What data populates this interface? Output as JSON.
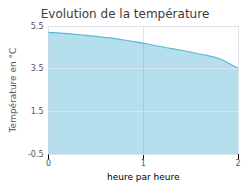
{
  "chart_data": {
    "type": "area",
    "title": "Evolution de la température",
    "x_label": "heure par heure",
    "y_label": "Température en °C",
    "x": [
      0,
      0.083,
      0.167,
      0.25,
      0.333,
      0.417,
      0.5,
      0.583,
      0.667,
      0.75,
      0.833,
      0.917,
      1.0,
      1.083,
      1.167,
      1.25,
      1.333,
      1.417,
      1.5,
      1.583,
      1.667,
      1.75,
      1.833,
      1.917,
      2.0
    ],
    "values": [
      5.2,
      5.18,
      5.15,
      5.12,
      5.09,
      5.05,
      5.01,
      4.97,
      4.93,
      4.87,
      4.82,
      4.76,
      4.7,
      4.62,
      4.55,
      4.48,
      4.42,
      4.35,
      4.28,
      4.2,
      4.12,
      4.04,
      3.92,
      3.72,
      3.52
    ],
    "color": "#5bb8d4",
    "xlim": [
      0,
      2
    ],
    "xticks": [
      0,
      1,
      2
    ],
    "ylim": [
      -0.5,
      5.5
    ],
    "yticks": [
      -0.5,
      1.5,
      3.5,
      5.5
    ],
    "grid": true
  }
}
